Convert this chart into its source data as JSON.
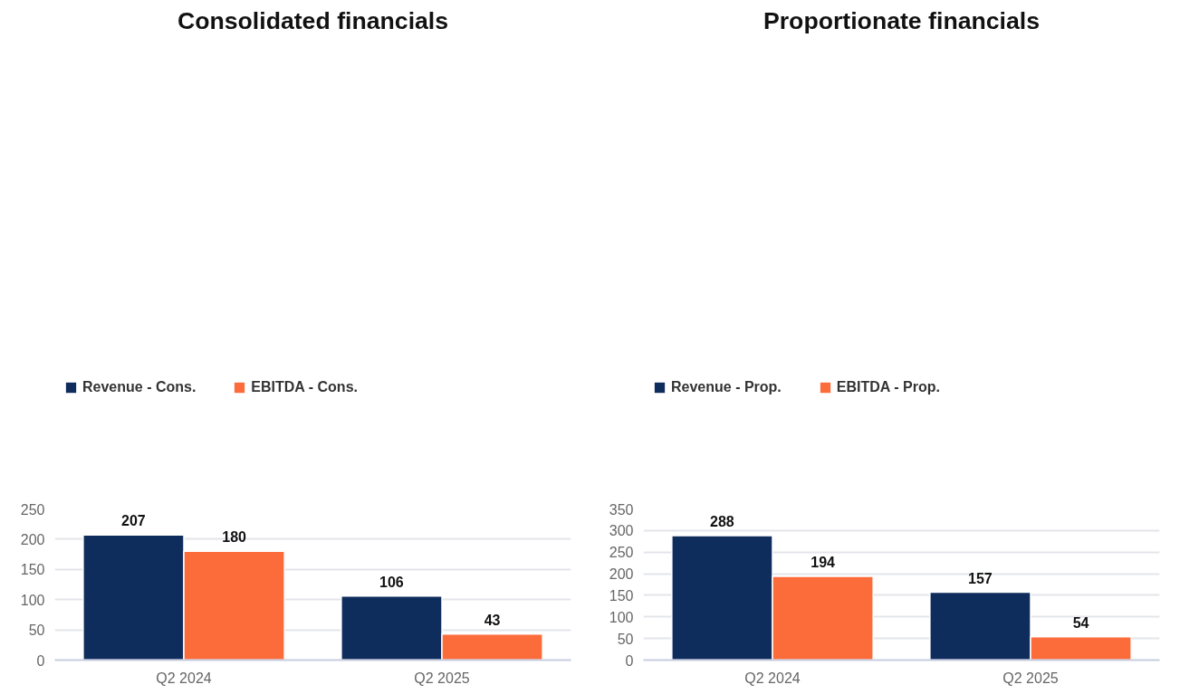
{
  "chart_data": [
    {
      "type": "bar",
      "title": "Consolidated financials",
      "categories": [
        "Q2 2024",
        "Q2 2025"
      ],
      "series": [
        {
          "name": "Revenue - Cons.",
          "color": "#0f2d5c",
          "values": [
            207,
            106
          ]
        },
        {
          "name": "EBITDA - Cons.",
          "color": "#fc6b3a",
          "values": [
            180,
            43
          ]
        }
      ],
      "ylim": [
        0,
        250
      ],
      "yticks": [
        0,
        50,
        100,
        150,
        200,
        250
      ],
      "grid": "y",
      "legend": "top left",
      "data_labels": true
    },
    {
      "type": "bar",
      "title": "Proportionate financials",
      "categories": [
        "Q2 2024",
        "Q2 2025"
      ],
      "series": [
        {
          "name": "Revenue - Prop.",
          "color": "#0f2d5c",
          "values": [
            288,
            157
          ]
        },
        {
          "name": "EBITDA - Prop.",
          "color": "#fc6b3a",
          "values": [
            194,
            54
          ]
        }
      ],
      "ylim": [
        0,
        350
      ],
      "yticks": [
        0,
        50,
        100,
        150,
        200,
        250,
        300,
        350
      ],
      "grid": "y",
      "legend": "top left",
      "data_labels": true
    }
  ]
}
